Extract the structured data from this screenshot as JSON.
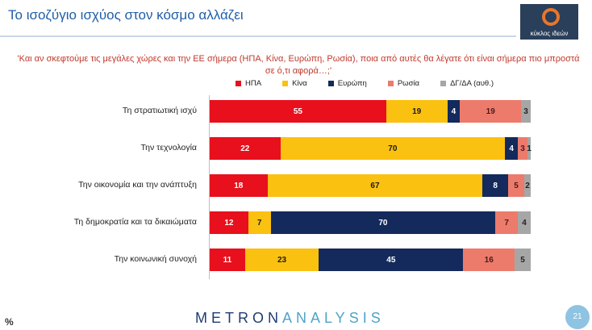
{
  "header": {
    "title": "Το ισοζύγιο ισχύος στον κόσμο αλλάζει",
    "logo_text": "κύκλος ιδεών"
  },
  "question": "'Και αν σκεφτούμε τις μεγάλες χώρες και την ΕΕ σήμερα (ΗΠΑ, Κίνα, Ευρώπη, Ρωσία), ποια από αυτές θα λέγατε ότι είναι σήμερα πιο μπροστά σε ό,τι αφορά…;'",
  "footer": {
    "percent_sign": "%",
    "brand_bold": "METRON",
    "brand_thin": "ANALYSIS",
    "page_number": "21"
  },
  "chart_data": {
    "type": "bar",
    "orientation": "horizontal",
    "stacked": true,
    "categories": [
      "Τη στρατιωτική ισχύ",
      "Την τεχνολογία",
      "Την οικονομία και την ανάπτυξη",
      "Τη δημοκρατία και τα δικαιώματα",
      "Την κοινωνική συνοχή"
    ],
    "series": [
      {
        "name": "ΗΠΑ",
        "color": "#e8101d",
        "text_color": "#ffffff",
        "values": [
          55,
          22,
          18,
          12,
          11
        ]
      },
      {
        "name": "Κίνα",
        "color": "#fbc110",
        "text_color": "#1a1a1a",
        "values": [
          19,
          70,
          67,
          7,
          23
        ]
      },
      {
        "name": "Ευρώπη",
        "color": "#142a5c",
        "text_color": "#ffffff",
        "values": [
          4,
          4,
          8,
          70,
          45
        ]
      },
      {
        "name": "Ρωσία",
        "color": "#ec7b6c",
        "text_color": "#4a1a1a",
        "values": [
          19,
          3,
          5,
          7,
          16
        ]
      },
      {
        "name": "ΔΓ/ΔΑ (αυθ.)",
        "color": "#a6a6a6",
        "text_color": "#222222",
        "values": [
          3,
          1,
          2,
          4,
          5
        ]
      }
    ],
    "xlim": [
      0,
      100
    ],
    "grid": false,
    "legend_position": "top"
  }
}
